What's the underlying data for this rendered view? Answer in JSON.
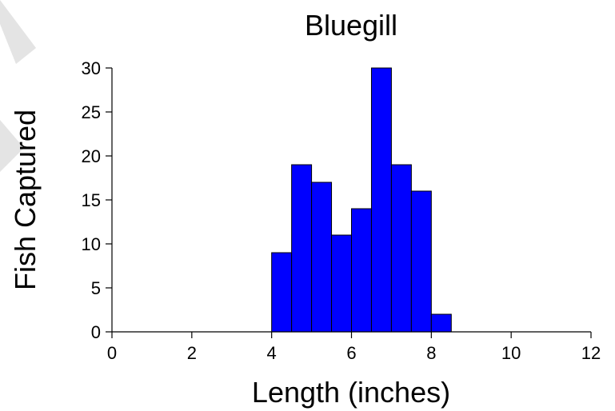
{
  "chart_data": {
    "type": "bar",
    "title": "Bluegill",
    "xlabel": "Length (inches)",
    "ylabel": "Fish Captured",
    "xlim": [
      0,
      12
    ],
    "ylim": [
      0,
      30
    ],
    "x_ticks": [
      0,
      2,
      4,
      6,
      8,
      10,
      12
    ],
    "y_ticks": [
      0,
      5,
      10,
      15,
      20,
      25,
      30
    ],
    "bin_width": 0.5,
    "bins": [
      {
        "x0": 4.0,
        "x1": 4.5,
        "value": 9
      },
      {
        "x0": 4.5,
        "x1": 5.0,
        "value": 19
      },
      {
        "x0": 5.0,
        "x1": 5.5,
        "value": 17
      },
      {
        "x0": 5.5,
        "x1": 6.0,
        "value": 11
      },
      {
        "x0": 6.0,
        "x1": 6.5,
        "value": 14
      },
      {
        "x0": 6.5,
        "x1": 7.0,
        "value": 30
      },
      {
        "x0": 7.0,
        "x1": 7.5,
        "value": 19
      },
      {
        "x0": 7.5,
        "x1": 8.0,
        "value": 16
      },
      {
        "x0": 8.0,
        "x1": 8.5,
        "value": 2
      }
    ],
    "bar_color": "#0000FF",
    "grid": false,
    "legend": "none"
  }
}
